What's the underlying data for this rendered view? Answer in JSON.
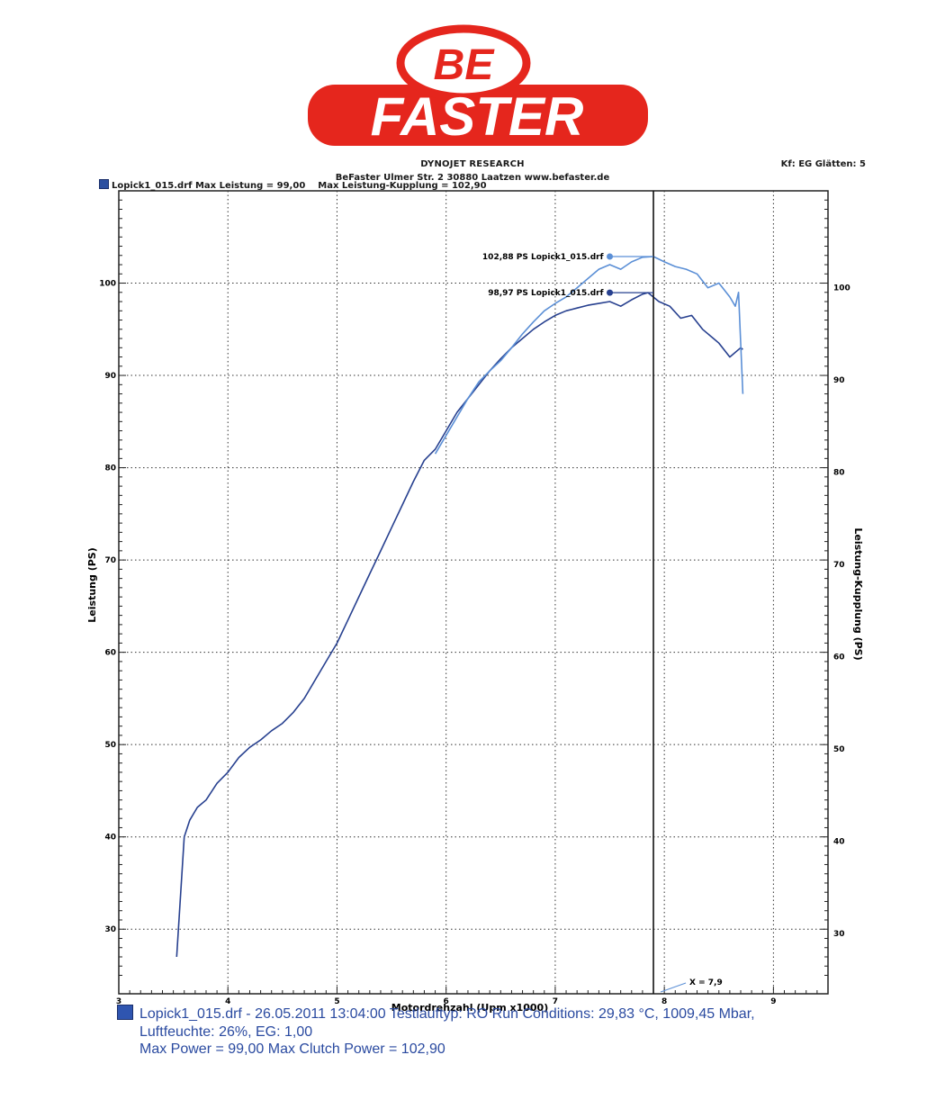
{
  "logo": {
    "line1": "BE",
    "line2": "FASTER",
    "color": "#e5261d"
  },
  "header": {
    "title": "DYNOJET RESEARCH",
    "right": "Kf: EG  Glätten: 5",
    "address": "BeFaster Ulmer Str. 2 30880 Laatzen www.befaster.de",
    "legend_max": "Lopick1_015.drf Max Leistung = 99,00",
    "legend_clutch": "Max Leistung-Kupplung = 102,90"
  },
  "chart_data": {
    "type": "line",
    "xlabel": "Motordrehzahl (Upm x1000)",
    "ylabel": "Leistung (PS)",
    "y2label": "Leistung-Kupplung (PS)",
    "xlim": [
      3,
      9.5
    ],
    "ylim": [
      23,
      110
    ],
    "x_ticks": [
      3,
      4,
      5,
      6,
      7,
      8,
      9
    ],
    "x_tick_labels": [
      "3",
      "4",
      "5",
      "6",
      "7",
      "8",
      "9"
    ],
    "y_ticks": [
      30,
      40,
      50,
      60,
      70,
      80,
      90,
      100
    ],
    "y_tick_labels": [
      "30",
      "40",
      "50",
      "60",
      "70",
      "80",
      "90",
      "100"
    ],
    "grid": true,
    "cursor": {
      "x": 7.9,
      "label": "X = 7,9"
    },
    "series": [
      {
        "name": "Lopick1_015.drf",
        "axis": "left",
        "color": "#27408f",
        "x": [
          3.53,
          3.6,
          3.65,
          3.72,
          3.8,
          3.9,
          4.0,
          4.1,
          4.2,
          4.3,
          4.4,
          4.5,
          4.6,
          4.7,
          4.8,
          4.9,
          5.0,
          5.1,
          5.2,
          5.3,
          5.4,
          5.5,
          5.6,
          5.7,
          5.8,
          5.9,
          6.0,
          6.1,
          6.2,
          6.3,
          6.4,
          6.5,
          6.6,
          6.7,
          6.8,
          6.9,
          7.0,
          7.1,
          7.2,
          7.3,
          7.4,
          7.5,
          7.6,
          7.7,
          7.8,
          7.85,
          7.95,
          8.05,
          8.15,
          8.25,
          8.35,
          8.45,
          8.5,
          8.6,
          8.7,
          8.72
        ],
        "y": [
          27,
          40,
          41.8,
          43.2,
          44,
          45.8,
          47,
          48.6,
          49.7,
          50.5,
          51.5,
          52.3,
          53.5,
          55,
          57,
          59,
          61,
          63.5,
          66,
          68.5,
          71,
          73.5,
          76,
          78.5,
          80.8,
          82,
          84,
          86,
          87.5,
          89,
          90.5,
          91.8,
          93,
          94,
          95,
          95.8,
          96.5,
          97,
          97.3,
          97.6,
          97.8,
          98,
          97.5,
          98.2,
          98.8,
          98.97,
          98,
          97.5,
          96.2,
          96.5,
          95,
          94,
          93.5,
          92,
          93,
          92.8
        ]
      },
      {
        "name": "Lopick1_015.drf",
        "axis": "right",
        "color": "#5b8fd6",
        "x": [
          5.9,
          6.0,
          6.1,
          6.2,
          6.3,
          6.4,
          6.5,
          6.6,
          6.7,
          6.8,
          6.9,
          7.0,
          7.1,
          7.2,
          7.3,
          7.4,
          7.5,
          7.6,
          7.7,
          7.8,
          7.9,
          8.0,
          8.1,
          8.2,
          8.3,
          8.4,
          8.5,
          8.6,
          8.65,
          8.68,
          8.72
        ],
        "y": [
          81.5,
          83.5,
          85.5,
          87.5,
          89.3,
          90.5,
          91.6,
          93,
          94.5,
          95.8,
          97,
          97.8,
          98.5,
          99.5,
          100.5,
          101.5,
          102,
          101.5,
          102.3,
          102.8,
          102.88,
          102.3,
          101.8,
          101.5,
          101,
          99.5,
          100,
          98.5,
          97.5,
          99,
          88
        ]
      }
    ],
    "annotations": [
      {
        "text": "102,88 PS Lopick1_015.drf",
        "x": 7.5,
        "y": 102.88,
        "color": "#5b8fd6"
      },
      {
        "text": "98,97 PS Lopick1_015.drf",
        "x": 7.5,
        "y": 98.97,
        "color": "#27408f"
      }
    ]
  },
  "footer": {
    "line1": "Lopick1_015.drf - 26.05.2011 13:04:00  Testlauftyp: RO  Run Conditions: 29,83 °C, 1009,45 Mbar,",
    "line2": "Luftfeuchte: 26%, EG: 1,00",
    "line3": "Max Power = 99,00  Max Clutch Power = 102,90"
  }
}
